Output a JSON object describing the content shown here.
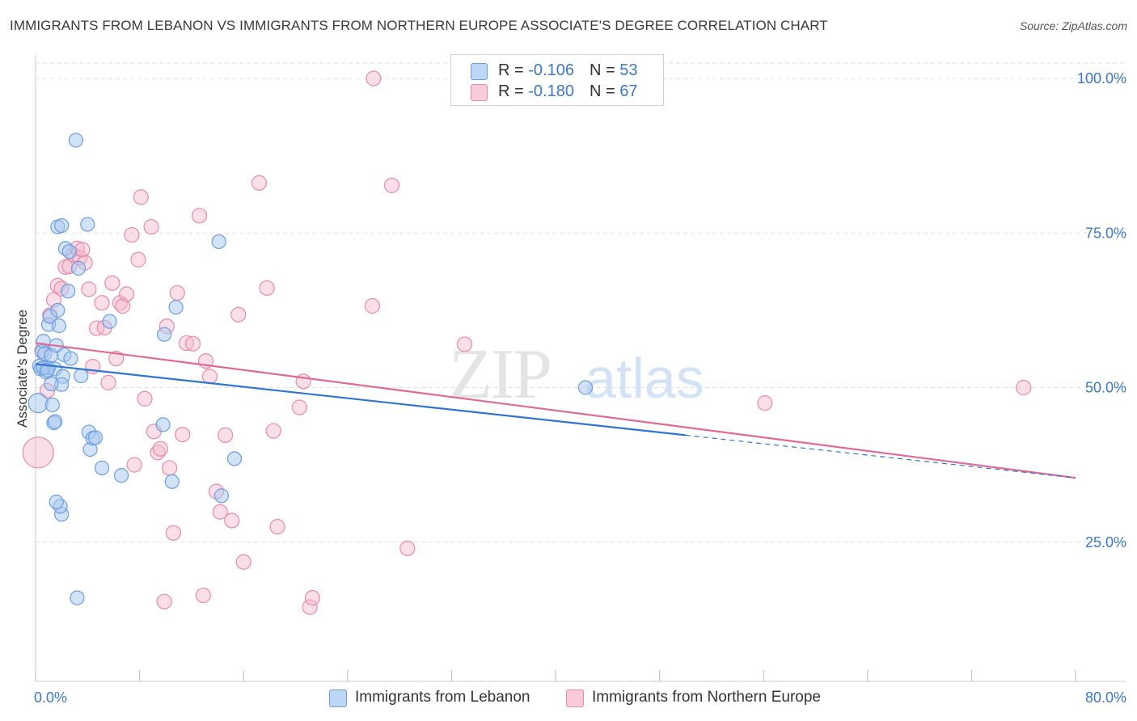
{
  "title": "IMMIGRANTS FROM LEBANON VS IMMIGRANTS FROM NORTHERN EUROPE ASSOCIATE'S DEGREE CORRELATION CHART",
  "source": "Source: ZipAtlas.com",
  "watermark": {
    "zip": "ZIP",
    "atlas": "atlas"
  },
  "colors": {
    "blue_fill": "#a8c8f0",
    "blue_stroke": "#6a9ee0",
    "blue_line": "#2f74d0",
    "pink_fill": "#f5b8cc",
    "pink_stroke": "#e88aa8",
    "pink_line": "#e06a93",
    "axis_label": "#3b78c8",
    "grid": "#e0e0e0"
  },
  "legend": {
    "rows": [
      {
        "r_label": "R = ",
        "r_value": "-0.106",
        "n_label": "N = ",
        "n_value": "53",
        "color": "#a8c8f0"
      },
      {
        "r_label": "R = ",
        "r_value": "-0.180",
        "n_label": "N = ",
        "n_value": "67",
        "color": "#f5b8cc"
      }
    ]
  },
  "bottom_legend": [
    "Immigrants from Lebanon",
    "Immigrants from Northern Europe"
  ],
  "chart_data": {
    "type": "scatter",
    "ylabel": "Associate's Degree",
    "xlim": [
      0,
      80
    ],
    "ylim": [
      0,
      100
    ],
    "x_tick_labels": [
      {
        "value": 0,
        "label": "0.0%"
      },
      {
        "value": 80,
        "label": "80.0%"
      }
    ],
    "y_tick_labels": [
      {
        "value": 25,
        "label": "25.0%"
      },
      {
        "value": 50,
        "label": "50.0%"
      },
      {
        "value": 75,
        "label": "75.0%"
      },
      {
        "value": 100,
        "label": "100.0%"
      }
    ],
    "series": [
      {
        "name": "Immigrants from Lebanon",
        "R": -0.106,
        "N": 53,
        "trend": {
          "x0": 0,
          "y0": 53.8,
          "x1": 50,
          "y1": 42.3,
          "dashed_to_x": 80,
          "dashed_to_y": 35.4
        },
        "points": [
          [
            0.2,
            47.5
          ],
          [
            0.3,
            53.5
          ],
          [
            0.4,
            53.0
          ],
          [
            0.5,
            55.8
          ],
          [
            0.6,
            57.5
          ],
          [
            0.7,
            55.5
          ],
          [
            0.8,
            52.5
          ],
          [
            1.0,
            53.2
          ],
          [
            1.0,
            60.2
          ],
          [
            1.1,
            61.5
          ],
          [
            1.2,
            55.2
          ],
          [
            1.3,
            47.2
          ],
          [
            1.4,
            44.3
          ],
          [
            1.5,
            53.0
          ],
          [
            1.6,
            56.8
          ],
          [
            1.7,
            62.5
          ],
          [
            1.8,
            60.0
          ],
          [
            1.5,
            44.5
          ],
          [
            2.0,
            29.5
          ],
          [
            1.9,
            30.8
          ],
          [
            1.6,
            31.5
          ],
          [
            1.7,
            76.0
          ],
          [
            2.0,
            76.2
          ],
          [
            2.1,
            51.8
          ],
          [
            2.0,
            50.5
          ],
          [
            2.2,
            55.3
          ],
          [
            2.3,
            72.5
          ],
          [
            2.5,
            65.6
          ],
          [
            2.6,
            72.0
          ],
          [
            2.7,
            54.7
          ],
          [
            3.1,
            90.0
          ],
          [
            3.2,
            16.0
          ],
          [
            3.3,
            69.3
          ],
          [
            3.5,
            51.9
          ],
          [
            4.0,
            76.4
          ],
          [
            4.1,
            42.8
          ],
          [
            4.2,
            40.0
          ],
          [
            4.4,
            41.8
          ],
          [
            4.6,
            41.9
          ],
          [
            5.1,
            37.0
          ],
          [
            5.7,
            60.7
          ],
          [
            6.6,
            35.8
          ],
          [
            9.8,
            44.0
          ],
          [
            9.9,
            58.6
          ],
          [
            10.5,
            34.8
          ],
          [
            10.8,
            63.0
          ],
          [
            14.1,
            73.6
          ],
          [
            14.3,
            32.5
          ],
          [
            15.3,
            38.5
          ],
          [
            42.3,
            50.0
          ],
          [
            0.6,
            53.2
          ],
          [
            0.9,
            52.8
          ],
          [
            1.2,
            50.6
          ]
        ]
      },
      {
        "name": "Immigrants from Northern Europe",
        "R": -0.18,
        "N": 67,
        "trend": {
          "x0": 0,
          "y0": 57.2,
          "x1": 80,
          "y1": 35.4
        },
        "points": [
          [
            0.2,
            39.5
          ],
          [
            0.5,
            56.0
          ],
          [
            0.9,
            49.5
          ],
          [
            1.1,
            61.7
          ],
          [
            1.4,
            64.2
          ],
          [
            1.7,
            66.5
          ],
          [
            2.0,
            66.0
          ],
          [
            2.3,
            69.5
          ],
          [
            2.6,
            69.6
          ],
          [
            2.9,
            71.5
          ],
          [
            3.2,
            72.5
          ],
          [
            3.4,
            71.0
          ],
          [
            3.6,
            72.3
          ],
          [
            3.8,
            70.2
          ],
          [
            4.1,
            65.9
          ],
          [
            4.4,
            53.4
          ],
          [
            4.7,
            59.6
          ],
          [
            5.1,
            63.7
          ],
          [
            5.3,
            59.7
          ],
          [
            5.6,
            50.8
          ],
          [
            5.9,
            66.9
          ],
          [
            6.2,
            54.7
          ],
          [
            6.5,
            63.7
          ],
          [
            6.7,
            63.2
          ],
          [
            7.0,
            65.1
          ],
          [
            7.4,
            74.7
          ],
          [
            7.6,
            37.5
          ],
          [
            7.9,
            70.7
          ],
          [
            8.1,
            80.8
          ],
          [
            8.4,
            48.2
          ],
          [
            8.9,
            76.0
          ],
          [
            9.1,
            42.9
          ],
          [
            9.4,
            39.5
          ],
          [
            9.6,
            40.1
          ],
          [
            9.9,
            15.4
          ],
          [
            10.1,
            59.9
          ],
          [
            10.3,
            37.0
          ],
          [
            10.6,
            26.5
          ],
          [
            10.9,
            65.3
          ],
          [
            11.3,
            42.4
          ],
          [
            11.6,
            57.2
          ],
          [
            12.1,
            57.1
          ],
          [
            12.6,
            77.8
          ],
          [
            12.9,
            16.4
          ],
          [
            13.1,
            54.3
          ],
          [
            13.4,
            51.8
          ],
          [
            13.9,
            33.2
          ],
          [
            14.2,
            29.9
          ],
          [
            14.6,
            42.3
          ],
          [
            15.1,
            28.5
          ],
          [
            15.6,
            61.8
          ],
          [
            16.0,
            21.8
          ],
          [
            17.2,
            83.1
          ],
          [
            17.8,
            66.1
          ],
          [
            18.3,
            43.0
          ],
          [
            18.6,
            27.5
          ],
          [
            20.3,
            46.8
          ],
          [
            20.6,
            51.0
          ],
          [
            21.1,
            14.5
          ],
          [
            21.3,
            16.0
          ],
          [
            25.9,
            63.2
          ],
          [
            26.0,
            100.0
          ],
          [
            27.4,
            82.7
          ],
          [
            28.6,
            24.0
          ],
          [
            33.0,
            57.0
          ],
          [
            56.1,
            47.5
          ],
          [
            76.0,
            50.0
          ]
        ]
      }
    ]
  }
}
